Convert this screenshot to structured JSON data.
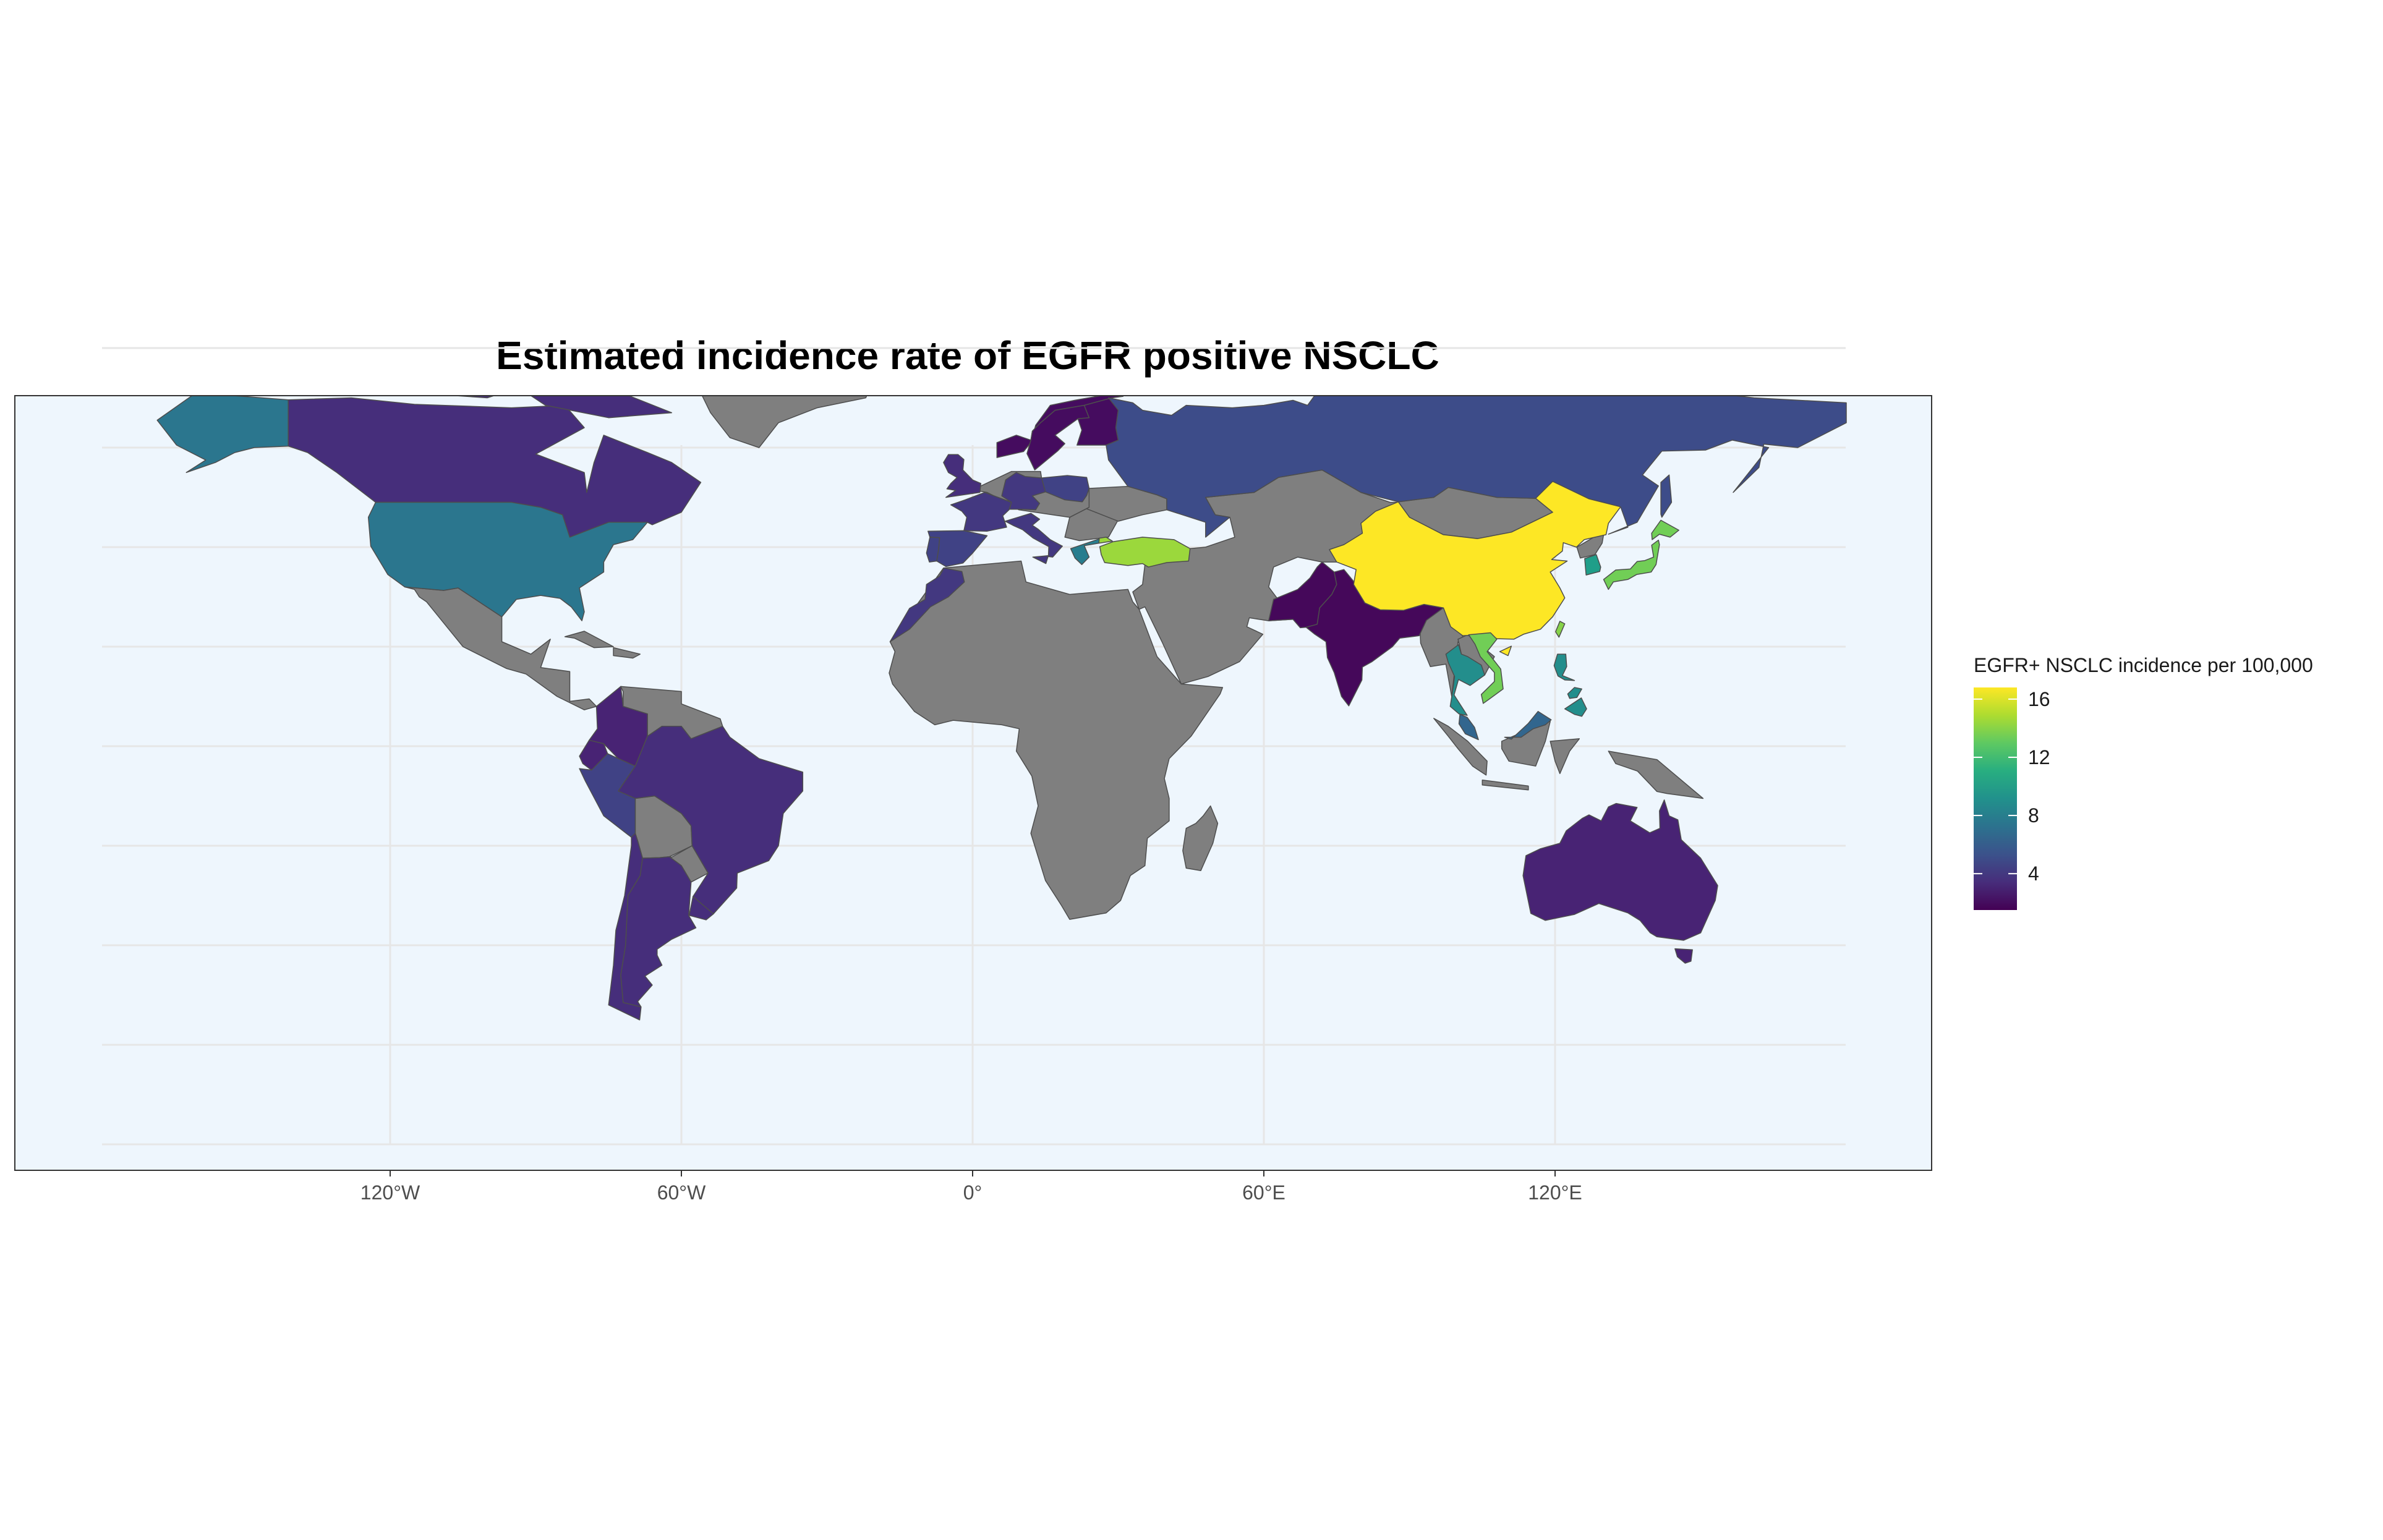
{
  "title": "Estimated incidence rate of EGFR positive NSCLC",
  "map": {
    "projection": "equirectangular",
    "background_color": "#eef6fd",
    "no_data_color": "#7f7f7f",
    "border_color": "#4d4d4d",
    "grid_color": "#e6e6e6",
    "x_ticks": [
      {
        "lon": -120,
        "label": "120°W"
      },
      {
        "lon": -60,
        "label": "60°W"
      },
      {
        "lon": 0,
        "label": "0°"
      },
      {
        "lon": 60,
        "label": "60°E"
      },
      {
        "lon": 120,
        "label": "120°E"
      }
    ],
    "lat_gridlines": [
      -80,
      -60,
      -40,
      -20,
      0,
      20,
      40,
      60,
      80
    ]
  },
  "legend": {
    "title": "EGFR+ NSCLC incidence per 100,000",
    "position": "right",
    "scale": "viridis",
    "range": [
      1.5,
      16.8
    ],
    "ticks": [
      {
        "value": 4,
        "label": "4"
      },
      {
        "value": 8,
        "label": "8"
      },
      {
        "value": 12,
        "label": "12"
      },
      {
        "value": 16,
        "label": "16"
      }
    ]
  },
  "chart_data": {
    "type": "choropleth",
    "value_label": "EGFR+ NSCLC incidence per 100,000",
    "regions": [
      {
        "name": "China",
        "value": 16.8
      },
      {
        "name": "Turkey",
        "value": 14.5
      },
      {
        "name": "Taiwan",
        "value": 14
      },
      {
        "name": "Japan",
        "value": 13.5
      },
      {
        "name": "Vietnam",
        "value": 13.5
      },
      {
        "name": "South Korea",
        "value": 10
      },
      {
        "name": "Thailand",
        "value": 9
      },
      {
        "name": "Philippines",
        "value": 9
      },
      {
        "name": "Greece",
        "value": 8
      },
      {
        "name": "Malaysia",
        "value": 6.5
      },
      {
        "name": "United States",
        "value": 7.5
      },
      {
        "name": "Alaska (United States)",
        "value": 7.5
      },
      {
        "name": "Russia",
        "value": 5
      },
      {
        "name": "Portugal",
        "value": 4.5
      },
      {
        "name": "Spain",
        "value": 4.5
      },
      {
        "name": "Peru",
        "value": 4.5
      },
      {
        "name": "Poland",
        "value": 4.5
      },
      {
        "name": "Canada",
        "value": 3.5
      },
      {
        "name": "Brazil",
        "value": 3.5
      },
      {
        "name": "Argentina",
        "value": 3.5
      },
      {
        "name": "Chile",
        "value": 3.5
      },
      {
        "name": "Italy",
        "value": 4
      },
      {
        "name": "France",
        "value": 4
      },
      {
        "name": "Germany",
        "value": 4
      },
      {
        "name": "United Kingdom",
        "value": 3.5
      },
      {
        "name": "Morocco",
        "value": 4
      },
      {
        "name": "Uruguay",
        "value": 3.5
      },
      {
        "name": "Colombia",
        "value": 3
      },
      {
        "name": "Australia",
        "value": 3
      },
      {
        "name": "Ecuador",
        "value": 3
      },
      {
        "name": "Sweden",
        "value": 2
      },
      {
        "name": "Finland",
        "value": 2
      },
      {
        "name": "Norway",
        "value": 2
      },
      {
        "name": "India",
        "value": 1.8
      },
      {
        "name": "Pakistan",
        "value": 1.8
      }
    ]
  }
}
